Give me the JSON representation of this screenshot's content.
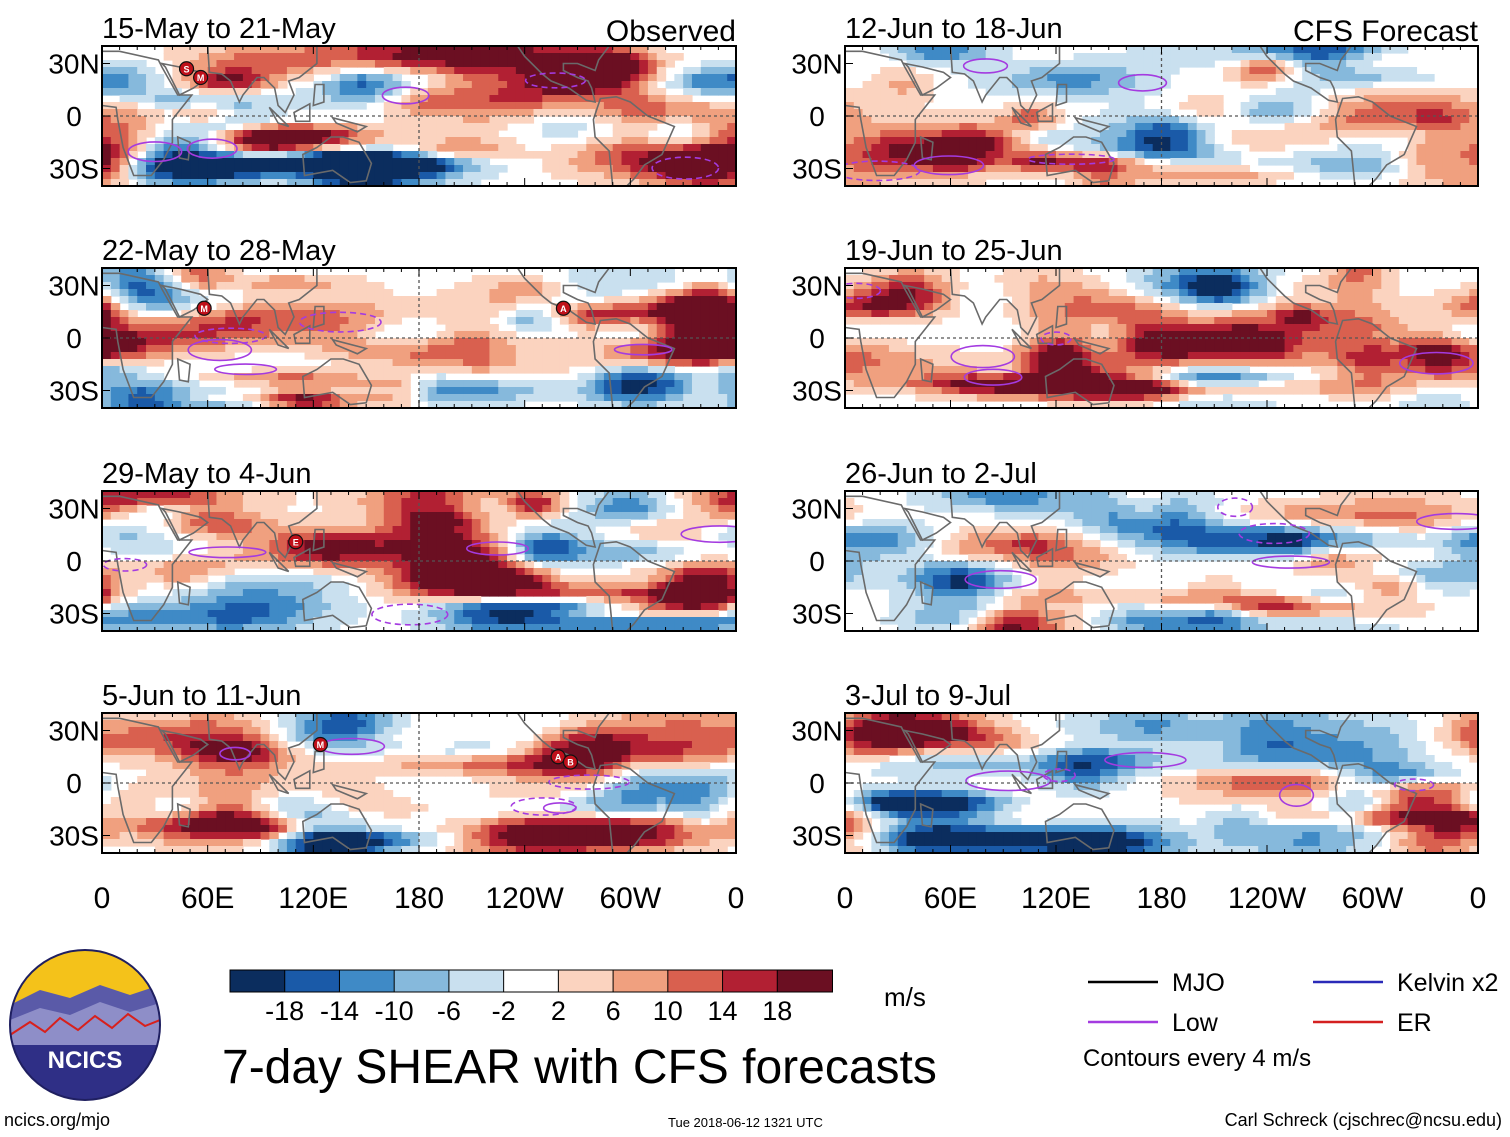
{
  "figure": {
    "title": "7-day SHEAR with CFS forecasts",
    "observed_label": "Observed",
    "forecast_label": "CFS Forecast",
    "unit": "m/s",
    "contour_note": "Contours every 4 m/s",
    "site": "ncics.org/mjo",
    "timestamp": "Tue 2018-06-12 1321 UTC",
    "credit": "Carl Schreck (cjschrec@ncsu.edu)",
    "logo_text": "NCICS"
  },
  "legend": {
    "lines": [
      {
        "label": "MJO",
        "color": "#000000"
      },
      {
        "label": "Kelvin x2",
        "color": "#2a2ab8"
      },
      {
        "label": "Low",
        "color": "#a43be0"
      },
      {
        "label": "ER",
        "color": "#d42020"
      }
    ]
  },
  "chart_data": {
    "type": "heatmap",
    "variable": "Vertical wind shear anomaly",
    "units": "m/s",
    "x_tick_labels": [
      "0",
      "60E",
      "120E",
      "180",
      "120W",
      "60W",
      "0"
    ],
    "y_tick_labels": [
      "30N",
      "0",
      "30S"
    ],
    "xlim": [
      0,
      360
    ],
    "ylim": [
      -40,
      40
    ],
    "colorbar": {
      "boundaries": [
        -18,
        -14,
        -10,
        -6,
        -2,
        2,
        6,
        10,
        14,
        18
      ],
      "labels": [
        "-18",
        "-14",
        "-10",
        "-6",
        "-2",
        "2",
        "6",
        "10",
        "14",
        "18"
      ],
      "colors": [
        "#0b2d5e",
        "#1a5aa8",
        "#3f8ac6",
        "#86b9dc",
        "#c9e0ef",
        "#ffffff",
        "#fbd3bf",
        "#f0a07f",
        "#d9604f",
        "#b22033",
        "#6b0f22"
      ]
    },
    "panels": [
      {
        "period": "15-May to 21-May",
        "source": "Observed",
        "storms": [
          {
            "letter": "S"
          },
          {
            "letter": "M"
          }
        ]
      },
      {
        "period": "22-May to 28-May",
        "source": "Observed",
        "storms": [
          {
            "letter": "M"
          },
          {
            "letter": "A"
          }
        ]
      },
      {
        "period": "29-May to 4-Jun",
        "source": "Observed",
        "storms": [
          {
            "letter": "E"
          }
        ]
      },
      {
        "period": "5-Jun to 11-Jun",
        "source": "Observed",
        "storms": [
          {
            "letter": "M"
          },
          {
            "letter": "A"
          },
          {
            "letter": "B"
          }
        ]
      },
      {
        "period": "12-Jun to 18-Jun",
        "source": "CFS Forecast",
        "storms": []
      },
      {
        "period": "19-Jun to 25-Jun",
        "source": "CFS Forecast",
        "storms": []
      },
      {
        "period": "26-Jun to 2-Jul",
        "source": "CFS Forecast",
        "storms": []
      },
      {
        "period": "3-Jul to 9-Jul",
        "source": "CFS Forecast",
        "storms": []
      }
    ]
  }
}
